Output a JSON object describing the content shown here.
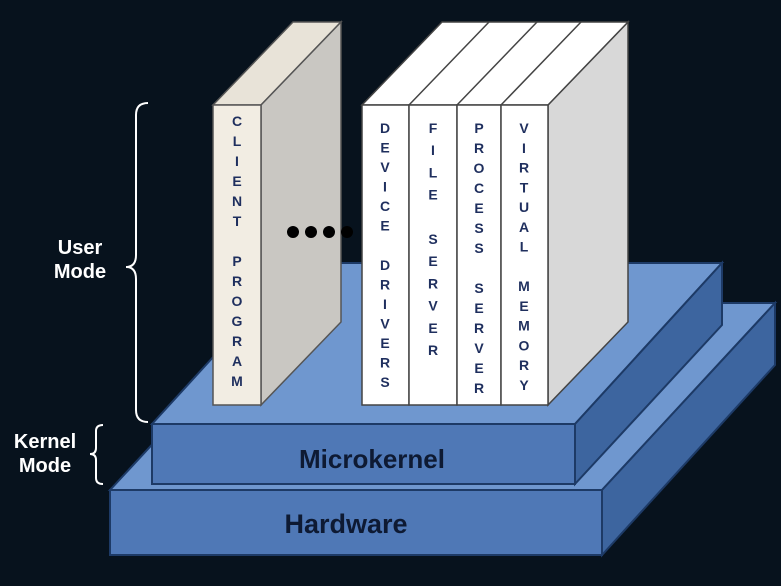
{
  "colors": {
    "background": "#07121d",
    "layer_top": "#6f97cf",
    "layer_front": "#4f78b6",
    "layer_side": "#3d659f",
    "layer_edge": "#1d3a66",
    "book_front": "#ffffff",
    "client_front": "#f2ede3",
    "book_side": "#d8d8d8",
    "book_top": "#ffffff",
    "book_text": "#1f2f5e",
    "bracket": "#ffffff"
  },
  "labels": {
    "user_mode_line1": "User",
    "user_mode_line2": "Mode",
    "kernel_mode_line1": "Kernel",
    "kernel_mode_line2": "Mode",
    "microkernel": "Microkernel",
    "hardware": "Hardware"
  },
  "servers": [
    {
      "id": "client-program",
      "text": "CLIENT PROGRAM"
    },
    {
      "id": "device-drivers",
      "text": "DEVICE DRIVERS"
    },
    {
      "id": "file-server",
      "text": "FILE SERVER"
    },
    {
      "id": "process-server",
      "text": "PROCESS SERVER"
    },
    {
      "id": "virtual-memory",
      "text": "VIRTUAL MEMORY"
    }
  ],
  "ellipsis_dots": 4
}
